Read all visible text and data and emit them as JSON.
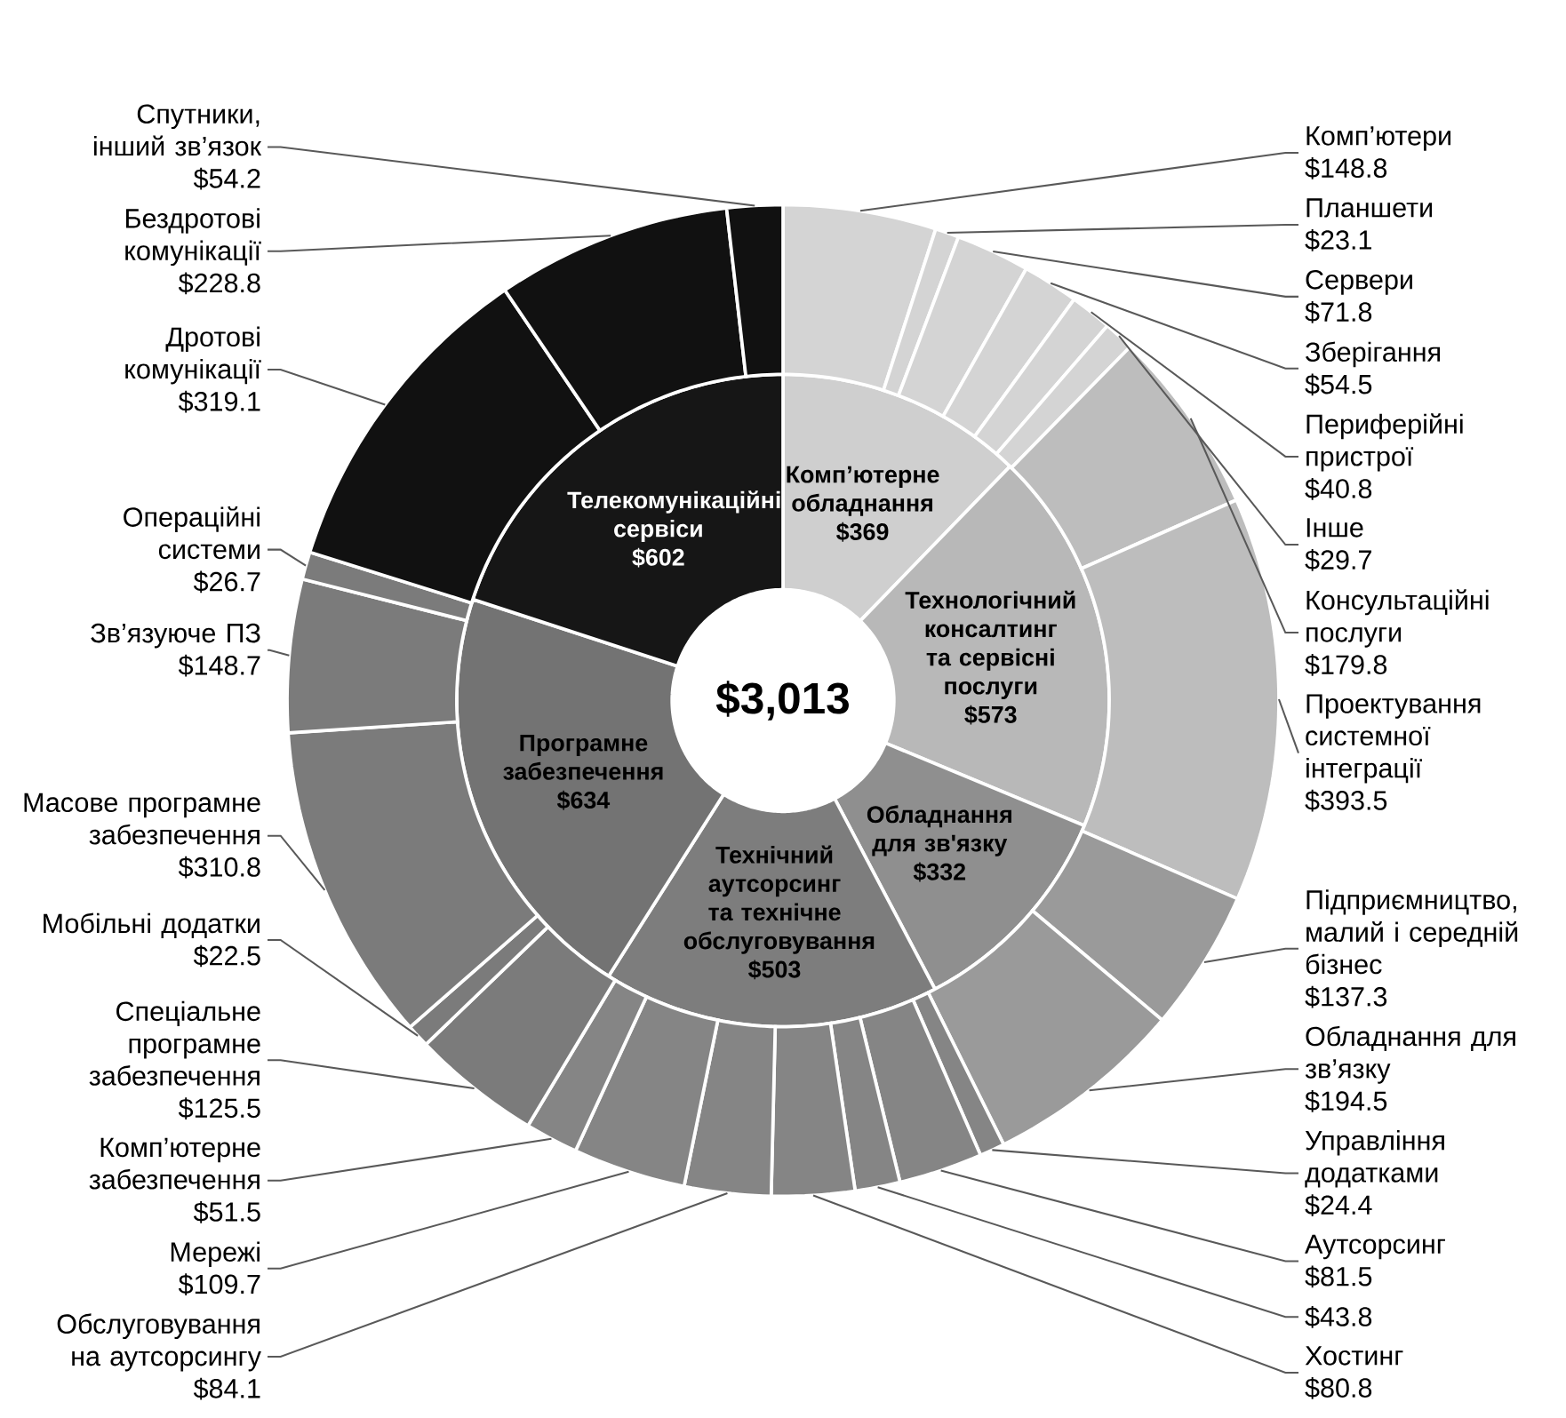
{
  "chart_data": [
    {
      "type": "donut",
      "categories": [
        "Комп’ютерне обладнання",
        "Технологічний консалтинг та сервісні послуги",
        "Обладнання для зв'язку",
        "Технічний аутсорсинг та технічне обслуговування",
        "Програмне забезпечення",
        "Телекомунікаційні сервіси"
      ],
      "values": [
        369,
        573,
        332,
        503,
        634,
        602
      ],
      "value_labels": [
        "$369",
        "$573",
        "$332",
        "$503",
        "$634",
        "$602"
      ],
      "colors": [
        "#cfcfcf",
        "#b8b8b8",
        "#8f8f8f",
        "#7d7d7d",
        "#737373",
        "#161616"
      ],
      "annotations": [
        "$3,013"
      ]
    },
    {
      "type": "donut",
      "categories": [
        "Комп’ютери",
        "Планшети",
        "Сервери",
        "Зберігання",
        "Периферійні пристрої",
        "Інше",
        "Консультаційні послуги",
        "Проектування системної інтеграції",
        "Підприємництво, малий і середній бізнес",
        "Обладнання для зв’язку",
        "Управління додатками",
        "Аутсорсинг",
        null,
        "Хостинг",
        "Обслуговування на аутсорсингу",
        "Мережі",
        "Комп’ютерне забезпечення",
        "Спеціальне програмне забезпечення",
        "Мобільні додатки",
        "Масове програмне забезпечення",
        "Зв’язуюче ПЗ",
        "Операційні системи",
        "Дротові комунікації",
        "Бездротові комунікації",
        "Спутники, інший зв’язок"
      ],
      "values": [
        148.8,
        23.1,
        71.8,
        54.5,
        40.8,
        29.7,
        179.8,
        393.5,
        137.3,
        194.5,
        24.4,
        81.5,
        43.8,
        80.8,
        84.1,
        109.7,
        51.5,
        125.5,
        22.5,
        310.8,
        148.7,
        26.7,
        319.1,
        228.8,
        54.2
      ],
      "value_labels": [
        "$148.8",
        "$23.1",
        "$71.8",
        "$54.5",
        "$40.8",
        "$29.7",
        "$179.8",
        "$393.5",
        "$137.3",
        "$194.5",
        "$24.4",
        "$81.5",
        "$43.8",
        "$80.8",
        "$84.1",
        "$109.7",
        "$51.5",
        "$125.5",
        "$22.5",
        "$310.8",
        "$148.7",
        "$26.7",
        "$319.1",
        "$228.8",
        "$54.2"
      ],
      "colors": [
        "#d4d4d4",
        "#d4d4d4",
        "#d4d4d4",
        "#d4d4d4",
        "#d4d4d4",
        "#d4d4d4",
        "#bdbdbd",
        "#bdbdbd",
        "#9a9a9a",
        "#9a9a9a",
        "#858585",
        "#858585",
        "#858585",
        "#858585",
        "#858585",
        "#858585",
        "#858585",
        "#7b7b7b",
        "#7b7b7b",
        "#7b7b7b",
        "#7b7b7b",
        "#7b7b7b",
        "#111111",
        "#111111",
        "#111111"
      ]
    }
  ]
}
